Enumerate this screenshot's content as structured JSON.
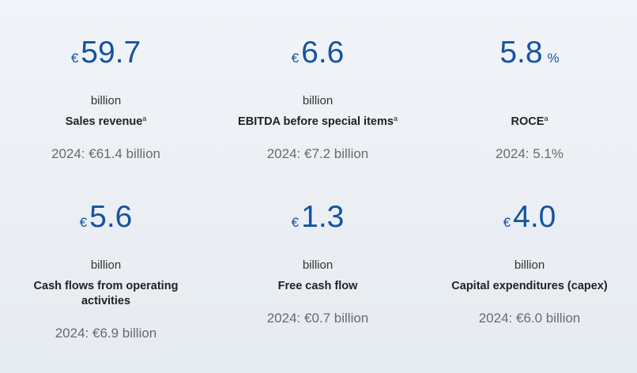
{
  "tiles": [
    {
      "currency": "€",
      "value": "59.7",
      "unit": "billion",
      "label": "Sales revenue",
      "note": "a",
      "prior": "2024: €61.4 billion"
    },
    {
      "currency": "€",
      "value": "6.6",
      "unit": "billion",
      "label": "EBITDA before special items",
      "note": "a",
      "prior": "2024: €7.2 billion"
    },
    {
      "value": "5.8",
      "suffix": "%",
      "label": "ROCE",
      "note": "a",
      "prior": "2024: 5.1%"
    },
    {
      "currency": "€",
      "value": "5.6",
      "unit": "billion",
      "label": "Cash flows from operating activities",
      "prior": "2024: €6.9 billion"
    },
    {
      "currency": "€",
      "value": "1.3",
      "unit": "billion",
      "label": "Free cash flow",
      "prior": "2024: €0.7 billion"
    },
    {
      "currency": "€",
      "value": "4.0",
      "unit": "billion",
      "label": "Capital expenditures (capex)",
      "prior": "2024: €6.0 billion"
    }
  ]
}
